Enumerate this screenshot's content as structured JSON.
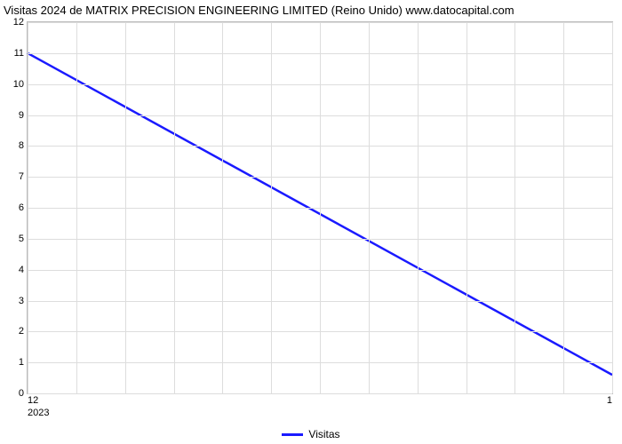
{
  "title": "Visitas 2024 de MATRIX PRECISION ENGINEERING LIMITED (Reino Unido) www.datocapital.com",
  "chart": {
    "type": "line",
    "background_color": "#ffffff",
    "grid_color": "#dddddd",
    "border_color": "#bbbbbb",
    "xlim": [
      12,
      1
    ],
    "ylim": [
      0,
      12
    ],
    "x_ticks": [
      12,
      1
    ],
    "x_tick_labels": [
      "12",
      "1"
    ],
    "x_sub_label": "2023",
    "y_ticks": [
      0,
      1,
      2,
      3,
      4,
      5,
      6,
      7,
      8,
      9,
      10,
      11,
      12
    ],
    "y_tick_labels": [
      "0",
      "1",
      "2",
      "3",
      "4",
      "5",
      "6",
      "7",
      "8",
      "9",
      "10",
      "11",
      "12"
    ],
    "x_grid_count": 12,
    "series": [
      {
        "name": "Visitas",
        "color": "#1a1aff",
        "line_width": 2.5,
        "dash": "solid",
        "points": [
          {
            "x": 12,
            "y": 11
          },
          {
            "x": 1,
            "y": 0.6
          }
        ]
      }
    ],
    "legend": {
      "position": "bottom-center",
      "label": "Visitas",
      "swatch_color": "#1a1aff"
    },
    "tick_font_size": 11,
    "title_font_size": 13
  }
}
